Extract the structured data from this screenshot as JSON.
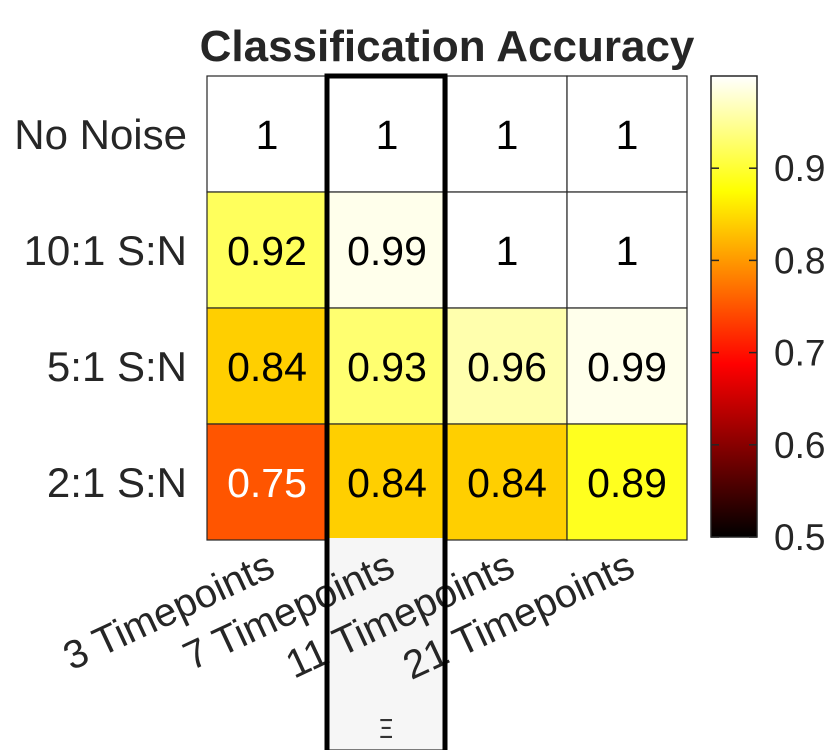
{
  "chart_data": {
    "type": "heatmap",
    "title": "Classification Accuracy",
    "rows": [
      "No Noise",
      "10:1 S:N",
      "5:1 S:N",
      "2:1 S:N"
    ],
    "columns": [
      "3 Timepoints",
      "7 Timepoints",
      "11 Timepoints",
      "21 Timepoints"
    ],
    "values": [
      [
        1,
        1,
        1,
        1
      ],
      [
        0.92,
        0.99,
        1,
        1
      ],
      [
        0.84,
        0.93,
        0.96,
        0.99
      ],
      [
        0.75,
        0.84,
        0.84,
        0.89
      ]
    ],
    "cell_labels": [
      [
        "1",
        "1",
        "1",
        "1"
      ],
      [
        "0.92",
        "0.99",
        "1",
        "1"
      ],
      [
        "0.84",
        "0.93",
        "0.96",
        "0.99"
      ],
      [
        "0.75",
        "0.84",
        "0.84",
        "0.89"
      ]
    ],
    "colormap": "hot",
    "clim": [
      0.5,
      1
    ],
    "colorbar": {
      "ticks": [
        0.5,
        0.6,
        0.7,
        0.8,
        0.9
      ],
      "tick_labels": [
        "0.5",
        "0.6",
        "0.7",
        "0.8",
        "0.9"
      ],
      "position": "right"
    },
    "highlighted_column": "7 Timepoints",
    "highlight_color": "#000000"
  },
  "overlay": {
    "glyph": "Ξ"
  }
}
